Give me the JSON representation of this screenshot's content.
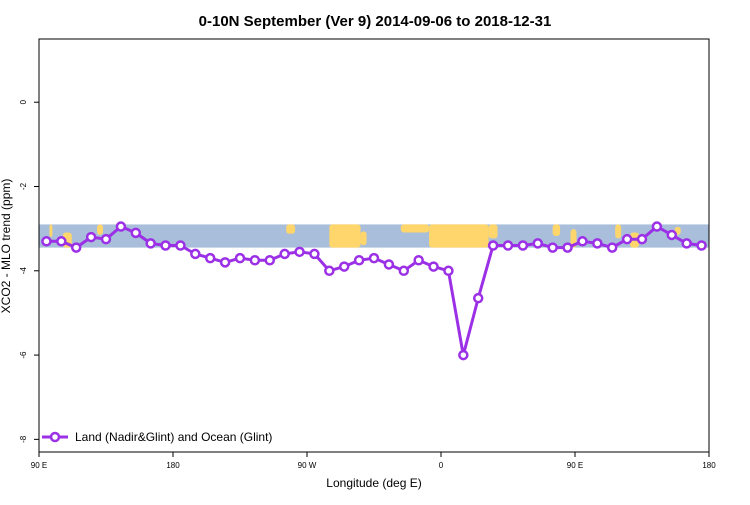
{
  "chart_data": {
    "type": "line",
    "title": "0-10N September (Ver 9)   2014-09-06 to 2018-12-31",
    "xlabel": "Longitude (deg E)",
    "ylabel": "XCO2 - MLO trend (ppm)",
    "x_ticks": [
      {
        "value": 90,
        "label": "90 E"
      },
      {
        "value": 180,
        "label": "180"
      },
      {
        "value": 270,
        "label": "90 W"
      },
      {
        "value": 360,
        "label": "0"
      },
      {
        "value": 450,
        "label": "90 E"
      },
      {
        "value": 540,
        "label": "180"
      }
    ],
    "y_ticks": [
      {
        "value": 0,
        "label": "0"
      },
      {
        "value": -2,
        "label": "-2"
      },
      {
        "value": -4,
        "label": "-4"
      },
      {
        "value": -6,
        "label": "-6"
      },
      {
        "value": -8,
        "label": "-8"
      }
    ],
    "xlim": [
      90,
      540
    ],
    "ylim": [
      -8.3,
      1.5
    ],
    "grid": false,
    "legend_position": "bottom-left",
    "background_map": {
      "lat_range": "0-10N",
      "y_range": [
        -3.45,
        -2.9
      ],
      "ocean_color": "#A8BEDA",
      "land_color": "#FFD66B"
    },
    "series": [
      {
        "name": "Land (Nadir&Glint) and Ocean (Glint)",
        "color": "#9B30E6",
        "x": [
          95,
          105,
          115,
          125,
          135,
          145,
          155,
          165,
          175,
          185,
          195,
          205,
          215,
          225,
          235,
          245,
          255,
          265,
          275,
          285,
          295,
          305,
          315,
          325,
          335,
          345,
          355,
          365,
          375,
          385,
          395,
          405,
          415,
          425,
          435,
          445,
          455,
          465,
          475,
          485,
          495,
          505,
          515,
          525,
          535
        ],
        "y": [
          -3.3,
          -3.3,
          -3.45,
          -3.2,
          -3.25,
          -2.95,
          -3.1,
          -3.35,
          -3.4,
          -3.4,
          -3.6,
          -3.7,
          -3.8,
          -3.7,
          -3.75,
          -3.75,
          -3.6,
          -3.55,
          -3.6,
          -4.0,
          -3.9,
          -3.75,
          -3.7,
          -3.85,
          -4.0,
          -3.75,
          -3.9,
          -4.0,
          -6.0,
          -4.65,
          -3.4,
          -3.4,
          -3.4,
          -3.35,
          -3.45,
          -3.45,
          -3.3,
          -3.35,
          -3.45,
          -3.25,
          -3.25,
          -2.95,
          -3.15,
          -3.35,
          -3.4
        ]
      }
    ]
  }
}
